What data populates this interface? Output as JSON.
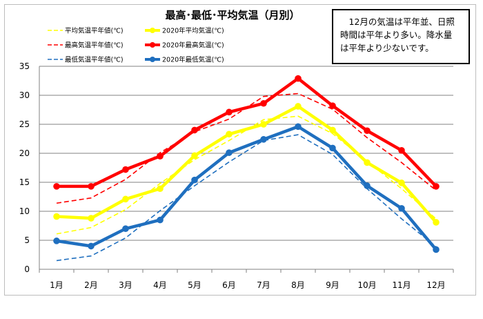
{
  "chart_data": {
    "type": "line",
    "title": "最高･最低･平均気温（月別）",
    "categories": [
      "1月",
      "2月",
      "3月",
      "4月",
      "5月",
      "6月",
      "7月",
      "8月",
      "9月",
      "10月",
      "11月",
      "12月"
    ],
    "ylim": [
      0,
      35
    ],
    "yticks": [
      "0",
      "5",
      "10",
      "15",
      "20",
      "25",
      "30",
      "35"
    ],
    "grid": true,
    "legend_position": "top-left",
    "series": [
      {
        "name": "平均気温平年値(℃)",
        "color": "#ffff00",
        "style": "dashed",
        "values": [
          6.1,
          7.2,
          10.3,
          14.8,
          18.9,
          22.2,
          25.8,
          26.4,
          23.4,
          18.6,
          13.9,
          8.7
        ]
      },
      {
        "name": "2020年平均気温(℃)",
        "color": "#ffff00",
        "style": "solid",
        "values": [
          9.1,
          8.8,
          12.1,
          13.9,
          19.6,
          23.3,
          25.0,
          28.1,
          24.0,
          18.4,
          14.9,
          8.1
        ]
      },
      {
        "name": "最高気温平年値(℃)",
        "color": "#ff0000",
        "style": "dashed",
        "values": [
          11.4,
          12.3,
          15.5,
          20.1,
          23.7,
          25.9,
          29.8,
          30.3,
          27.6,
          22.7,
          18.4,
          13.6
        ]
      },
      {
        "name": "2020年最高気温(℃)",
        "color": "#ff0000",
        "style": "solid",
        "values": [
          14.3,
          14.3,
          17.2,
          19.5,
          24.0,
          27.1,
          28.6,
          32.9,
          28.2,
          23.9,
          20.5,
          14.3
        ]
      },
      {
        "name": "最低気温平年値(℃)",
        "color": "#1f6fbf",
        "style": "dashed",
        "values": [
          1.5,
          2.3,
          5.4,
          10.1,
          14.4,
          18.5,
          22.2,
          23.2,
          19.8,
          13.9,
          8.7,
          3.9
        ]
      },
      {
        "name": "2020年最低気温(℃)",
        "color": "#1f6fbf",
        "style": "solid",
        "values": [
          4.9,
          4.0,
          7.0,
          8.5,
          15.4,
          20.1,
          22.4,
          24.6,
          20.9,
          14.4,
          10.5,
          3.4
        ]
      }
    ]
  },
  "note": {
    "lines": [
      "　12月の気温は平年並、日照",
      "時間は平年より多い。降水量",
      "は平年より少ないです。"
    ]
  }
}
